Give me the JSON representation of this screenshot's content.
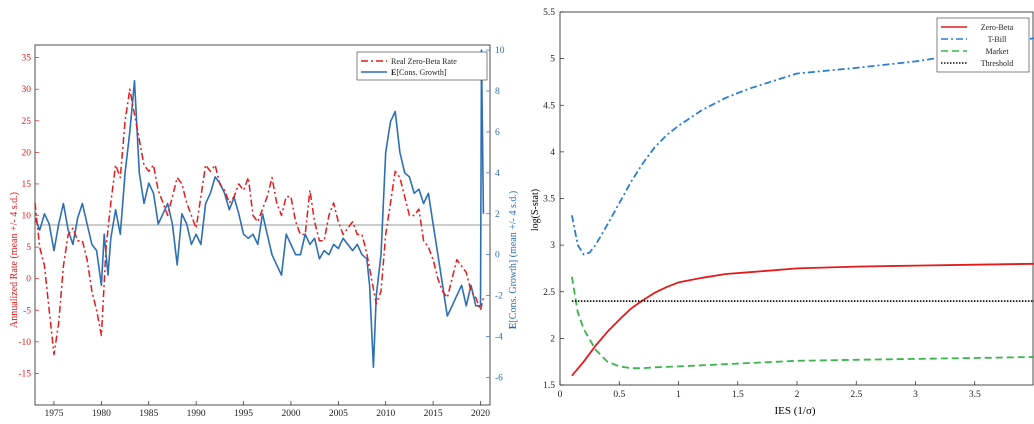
{
  "colors": {
    "zero_beta_red": "#e41a1c",
    "cons_blue": "#2d6fb4",
    "tbill_blue": "#2a7dd1",
    "market_green": "#39b54a",
    "threshold_black": "#111111",
    "hline_gray": "#9a9a9a"
  },
  "chart_data": [
    {
      "type": "line",
      "title": "",
      "xlabel": "",
      "ylabel_left": "Annualized Rate (mean +/- 4 s.d.)",
      "ylabel_right": "E[Cons. Growth] (mean +/- 4 s.d.)",
      "xlim": [
        1973,
        2021
      ],
      "ylim_left": [
        -20,
        37
      ],
      "ylim_right": [
        -7.35,
        10.25
      ],
      "x_ticks": [
        "1975",
        "1980",
        "1985",
        "1990",
        "1995",
        "2000",
        "2005",
        "2010",
        "2015",
        "2020"
      ],
      "y_ticks_left": [
        "-15",
        "-10",
        "-5",
        "0",
        "5",
        "10",
        "15",
        "20",
        "25",
        "30",
        "35"
      ],
      "y_ticks_right": [
        "-6",
        "-4",
        "-2",
        "0",
        "2",
        "4",
        "6",
        "8",
        "10"
      ],
      "hline_left": 8.5,
      "legend_position": "top-right",
      "series": [
        {
          "name": "Real Zero-Beta Rate",
          "axis": "left",
          "style": "dash-dot",
          "color": "#e41a1c",
          "x": [
            1973,
            1973.5,
            1974,
            1974.5,
            1975,
            1975.5,
            1976,
            1976.5,
            1977,
            1977.5,
            1978,
            1978.5,
            1979,
            1979.5,
            1980,
            1980.5,
            1981,
            1981.5,
            1982,
            1982.5,
            1983,
            1983.5,
            1984,
            1984.5,
            1985,
            1985.5,
            1986,
            1986.5,
            1987,
            1987.5,
            1988,
            1988.5,
            1989,
            1989.5,
            1990,
            1990.5,
            1991,
            1991.5,
            1992,
            1992.5,
            1993,
            1993.5,
            1994,
            1994.5,
            1995,
            1995.5,
            1996,
            1996.5,
            1997,
            1997.5,
            1998,
            1998.5,
            1999,
            1999.5,
            2000,
            2000.5,
            2001,
            2001.5,
            2002,
            2002.5,
            2003,
            2003.5,
            2004,
            2004.5,
            2005,
            2005.5,
            2006,
            2006.5,
            2007,
            2007.5,
            2008,
            2008.5,
            2009,
            2009.5,
            2010,
            2010.5,
            2011,
            2011.5,
            2012,
            2012.5,
            2013,
            2013.5,
            2014,
            2014.5,
            2015,
            2015.5,
            2016,
            2016.5,
            2017,
            2017.5,
            2018,
            2018.5,
            2019,
            2019.5,
            2020,
            2020.3
          ],
          "y": [
            12,
            5,
            2,
            -5,
            -12,
            -7,
            2,
            7,
            8,
            6,
            6,
            3,
            -2,
            -5,
            -9,
            5,
            12,
            18,
            16,
            25,
            30,
            26,
            22,
            18,
            17,
            18,
            14,
            12,
            10,
            13,
            16,
            15,
            12,
            10,
            8,
            13,
            18,
            17,
            18,
            15,
            14,
            12,
            13,
            15,
            14,
            16,
            10,
            9,
            11,
            13,
            16,
            12,
            10,
            13,
            13,
            9,
            7,
            7,
            14,
            9,
            6,
            6,
            10,
            12,
            9,
            7,
            8,
            9,
            7,
            7,
            4,
            0,
            -4,
            -2,
            7,
            12,
            17,
            16,
            13,
            10,
            10,
            11,
            6,
            5,
            3,
            0,
            -2,
            -3,
            0,
            3,
            2,
            1,
            -2,
            -3,
            -5,
            -3
          ]
        },
        {
          "name": "E[Cons. Growth]",
          "axis": "right",
          "style": "solid",
          "color": "#2d6fb4",
          "x": [
            1973,
            1973.5,
            1974,
            1974.5,
            1975,
            1975.5,
            1976,
            1976.5,
            1977,
            1977.5,
            1978,
            1978.5,
            1979,
            1979.5,
            1980,
            1980.3,
            1980.7,
            1981,
            1981.5,
            1982,
            1982.5,
            1983,
            1983.5,
            1984,
            1984.5,
            1985,
            1985.5,
            1986,
            1986.5,
            1987,
            1987.5,
            1988,
            1988.5,
            1989,
            1989.5,
            1990,
            1990.5,
            1991,
            1991.5,
            1992,
            1992.5,
            1993,
            1993.5,
            1994,
            1994.5,
            1995,
            1995.5,
            1996,
            1996.5,
            1997,
            1997.5,
            1998,
            1998.5,
            1999,
            1999.5,
            2000,
            2000.5,
            2001,
            2001.5,
            2002,
            2002.5,
            2003,
            2003.5,
            2004,
            2004.5,
            2005,
            2005.5,
            2006,
            2006.5,
            2007,
            2007.5,
            2008,
            2008.3,
            2008.7,
            2009,
            2009.5,
            2010,
            2010.5,
            2011,
            2011.5,
            2012,
            2012.5,
            2013,
            2013.5,
            2014,
            2014.5,
            2015,
            2015.5,
            2016,
            2016.5,
            2017,
            2017.5,
            2018,
            2018.5,
            2019,
            2019.5,
            2020,
            2020.1,
            2020.3
          ],
          "y": [
            1.8,
            1.2,
            2,
            1.5,
            0.2,
            1.5,
            2.5,
            1.2,
            0.5,
            1.8,
            2.5,
            1.5,
            0.5,
            0.2,
            -1.5,
            1,
            -1,
            0.8,
            2.2,
            1,
            4,
            6,
            8.5,
            4,
            2.5,
            3.5,
            3,
            1.5,
            2,
            2.5,
            1.5,
            -0.5,
            2,
            1.5,
            0.5,
            1,
            0.5,
            2.5,
            3,
            3.8,
            3.5,
            3,
            2.2,
            2.8,
            2,
            1,
            0.8,
            1,
            0.5,
            2,
            1,
            0,
            -0.5,
            -1,
            1,
            0.5,
            0,
            0,
            1,
            0.5,
            0.8,
            -0.2,
            0.2,
            0,
            0.5,
            0.3,
            0.8,
            0.5,
            0.2,
            0.5,
            0,
            -0.2,
            -1.5,
            -5.5,
            -2,
            0,
            5,
            6.5,
            7,
            5,
            4,
            3.8,
            3,
            3.2,
            2.5,
            3,
            1.5,
            0,
            -1.5,
            -3,
            -2.5,
            -2,
            -1.5,
            -2.5,
            -1.5,
            -2.5,
            -2.5,
            10,
            2
          ]
        }
      ]
    },
    {
      "type": "line",
      "title": "",
      "xlabel": "IES (1/σ)",
      "ylabel": "log(S-stat)",
      "xlim": [
        0,
        4
      ],
      "ylim": [
        1.5,
        5.5
      ],
      "x_ticks": [
        "0",
        "0.5",
        "1",
        "1.5",
        "2",
        "2.5",
        "3",
        "3.5"
      ],
      "y_ticks": [
        "1.5",
        "2",
        "2.5",
        "3",
        "3.5",
        "4",
        "4.5",
        "5",
        "5.5"
      ],
      "legend_position": "top-right",
      "series": [
        {
          "name": "Zero-Beta",
          "style": "solid",
          "color": "#e41a1c",
          "x": [
            0.1,
            0.2,
            0.3,
            0.4,
            0.5,
            0.6,
            0.7,
            0.8,
            0.9,
            1.0,
            1.2,
            1.4,
            1.6,
            1.8,
            2.0,
            2.5,
            3.0,
            3.5,
            4.0
          ],
          "y": [
            1.6,
            1.75,
            1.92,
            2.07,
            2.2,
            2.32,
            2.41,
            2.49,
            2.55,
            2.6,
            2.65,
            2.69,
            2.71,
            2.73,
            2.75,
            2.77,
            2.78,
            2.79,
            2.8
          ]
        },
        {
          "name": "T-Bill",
          "style": "dash-dot",
          "color": "#2a7dd1",
          "x": [
            0.1,
            0.15,
            0.2,
            0.25,
            0.3,
            0.4,
            0.5,
            0.6,
            0.7,
            0.8,
            0.9,
            1.0,
            1.2,
            1.4,
            1.6,
            1.8,
            2.0,
            2.5,
            3.0,
            3.5,
            4.0
          ],
          "y": [
            3.32,
            3.0,
            2.9,
            2.92,
            3.0,
            3.22,
            3.45,
            3.68,
            3.88,
            4.05,
            4.18,
            4.28,
            4.45,
            4.58,
            4.68,
            4.76,
            4.84,
            4.9,
            4.97,
            5.07,
            5.22
          ]
        },
        {
          "name": "Market",
          "style": "dashed",
          "color": "#39b54a",
          "x": [
            0.1,
            0.15,
            0.2,
            0.3,
            0.4,
            0.5,
            0.6,
            0.7,
            0.8,
            1.0,
            1.5,
            2.0,
            2.5,
            3.0,
            3.5,
            4.0
          ],
          "y": [
            2.66,
            2.28,
            2.1,
            1.88,
            1.75,
            1.7,
            1.68,
            1.68,
            1.69,
            1.7,
            1.73,
            1.76,
            1.77,
            1.78,
            1.79,
            1.8
          ]
        },
        {
          "name": "Threshold",
          "style": "dotted",
          "color": "#111111",
          "x": [
            0.1,
            4.0
          ],
          "y": [
            2.4,
            2.4
          ]
        }
      ]
    }
  ]
}
